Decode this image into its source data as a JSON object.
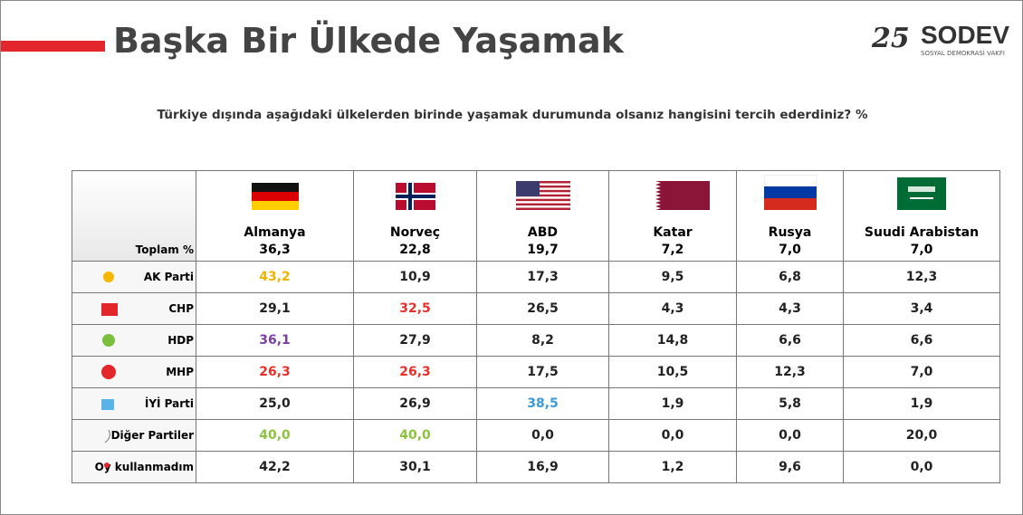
{
  "header": {
    "title": "Başka Bir Ülkede Yaşamak",
    "logo_number": "25",
    "logo_name": "SODEV",
    "logo_subtitle": "SOSYAL DEMOKRASİ VAKFI"
  },
  "subtitle": "Türkiye dışında aşağıdaki ülkelerden birinde yaşamak durumunda olsanız hangisini tercih ederdiniz? %",
  "table": {
    "corner": "Toplam %",
    "columns": [
      {
        "name": "Almanya",
        "total": "36,3"
      },
      {
        "name": "Norveç",
        "total": "22,8"
      },
      {
        "name": "ABD",
        "total": "19,7"
      },
      {
        "name": "Katar",
        "total": "7,2"
      },
      {
        "name": "Rusya",
        "total": "7,0"
      },
      {
        "name": "Suudi Arabistan",
        "total": "7,0"
      }
    ],
    "rows": [
      {
        "party": "AK Parti",
        "values": [
          "43,2",
          "10,9",
          "17,3",
          "9,5",
          "6,8",
          "12,3"
        ],
        "colors": [
          "#f0b400",
          "#222",
          "#222",
          "#222",
          "#222",
          "#222"
        ]
      },
      {
        "party": "CHP",
        "values": [
          "29,1",
          "32,5",
          "26,5",
          "4,3",
          "4,3",
          "3,4"
        ],
        "colors": [
          "#222",
          "#e8302a",
          "#222",
          "#222",
          "#222",
          "#222"
        ]
      },
      {
        "party": "HDP",
        "values": [
          "36,1",
          "27,9",
          "8,2",
          "14,8",
          "6,6",
          "6,6"
        ],
        "colors": [
          "#7b3fa0",
          "#222",
          "#222",
          "#222",
          "#222",
          "#222"
        ]
      },
      {
        "party": "MHP",
        "values": [
          "26,3",
          "26,3",
          "17,5",
          "10,5",
          "12,3",
          "7,0"
        ],
        "colors": [
          "#e8302a",
          "#e8302a",
          "#222",
          "#222",
          "#222",
          "#222"
        ]
      },
      {
        "party": "İYİ Parti",
        "values": [
          "25,0",
          "26,9",
          "38,5",
          "1,9",
          "5,8",
          "1,9"
        ],
        "colors": [
          "#222",
          "#222",
          "#3a9ad9",
          "#222",
          "#222",
          "#222"
        ]
      },
      {
        "party": "Diğer Partiler",
        "values": [
          "40,0",
          "40,0",
          "0,0",
          "0,0",
          "0,0",
          "20,0"
        ],
        "colors": [
          "#8cc43c",
          "#8cc43c",
          "#222",
          "#222",
          "#222",
          "#222"
        ]
      },
      {
        "party": "Oy kullanmadım",
        "values": [
          "42,2",
          "30,1",
          "16,9",
          "1,2",
          "9,6",
          "0,0"
        ],
        "colors": [
          "#222",
          "#222",
          "#222",
          "#222",
          "#222",
          "#222"
        ]
      }
    ]
  }
}
